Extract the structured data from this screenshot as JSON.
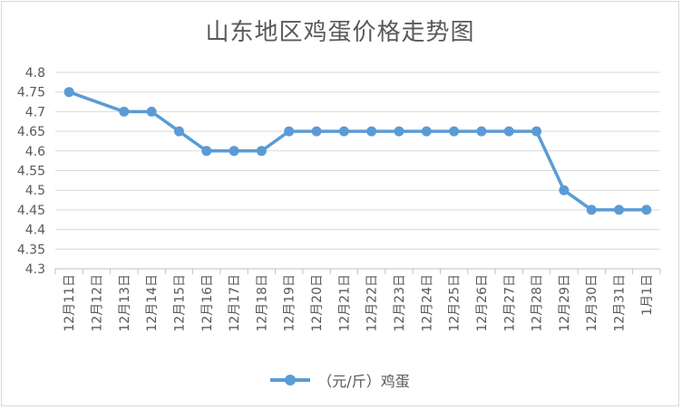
{
  "chart_data": {
    "type": "line",
    "title": "山东地区鸡蛋价格走势图",
    "categories": [
      "12月11日",
      "12月12日",
      "12月13日",
      "12月14日",
      "12月15日",
      "12月16日",
      "12月17日",
      "12月18日",
      "12月19日",
      "12月20日",
      "12月21日",
      "12月22日",
      "12月23日",
      "12月24日",
      "12月25日",
      "12月26日",
      "12月27日",
      "12月28日",
      "12月29日",
      "12月30日",
      "12月31日",
      "1月1日"
    ],
    "series": [
      {
        "name": "（元/斤）鸡蛋",
        "color": "#5b9bd5",
        "values": [
          4.75,
          null,
          4.7,
          4.7,
          4.65,
          4.6,
          4.6,
          4.6,
          4.65,
          4.65,
          4.65,
          4.65,
          4.65,
          4.65,
          4.65,
          4.65,
          4.65,
          4.65,
          4.5,
          4.45,
          4.45,
          4.45
        ]
      }
    ],
    "ylim": [
      4.3,
      4.8
    ],
    "yticks": [
      "4.3",
      "4.35",
      "4.4",
      "4.45",
      "4.5",
      "4.55",
      "4.6",
      "4.65",
      "4.7",
      "4.75",
      "4.8"
    ],
    "grid": true,
    "legend": "bottom",
    "xlabel": "",
    "ylabel": ""
  }
}
